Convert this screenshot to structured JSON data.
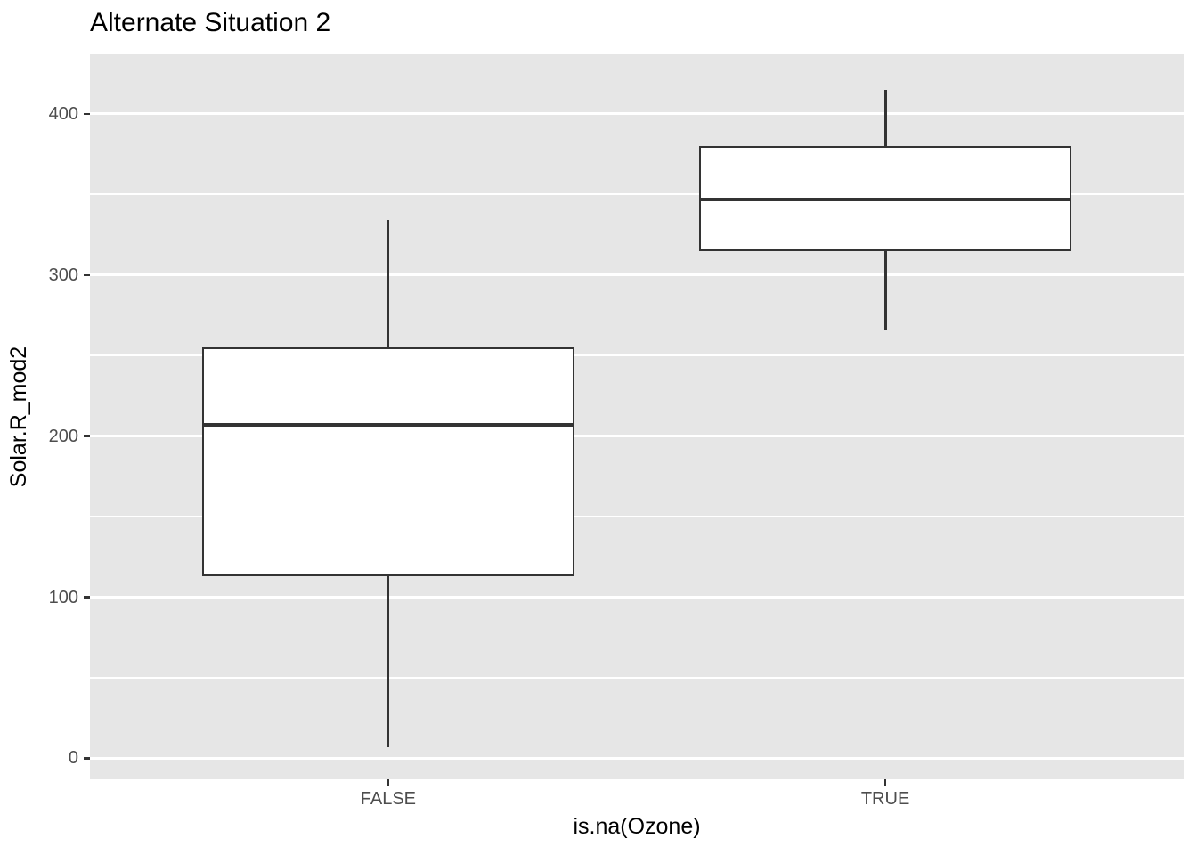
{
  "chart_data": {
    "type": "boxplot",
    "title": "Alternate Situation 2",
    "xlabel": "is.na(Ozone)",
    "ylabel": "Solar.R_mod2",
    "categories": [
      "FALSE",
      "TRUE"
    ],
    "series": [
      {
        "category": "FALSE",
        "whisker_min": 7,
        "q1": 113,
        "median": 207,
        "q3": 255,
        "whisker_max": 334
      },
      {
        "category": "TRUE",
        "whisker_min": 266,
        "q1": 315,
        "median": 347,
        "q3": 380,
        "whisker_max": 415
      }
    ],
    "yticks": [
      0,
      100,
      200,
      300,
      400
    ],
    "yticks_minor": [
      50,
      150,
      250,
      350
    ],
    "ylim": [
      -13,
      437
    ],
    "x_domain": [
      0.4,
      2.6
    ],
    "box_width_units": 0.75,
    "grid": "major-and-minor-horizontal",
    "legend": "none",
    "outliers": [],
    "theme": {
      "plot_bg": "#FFFFFF",
      "panel_bg": "#E6E6E6",
      "grid_color": "#FFFFFF",
      "box_fill": "#FFFFFF",
      "box_stroke": "#333333",
      "tick_mark_color": "#333333",
      "tick_label_color": "#4D4D4D",
      "title_color": "#000000"
    }
  }
}
